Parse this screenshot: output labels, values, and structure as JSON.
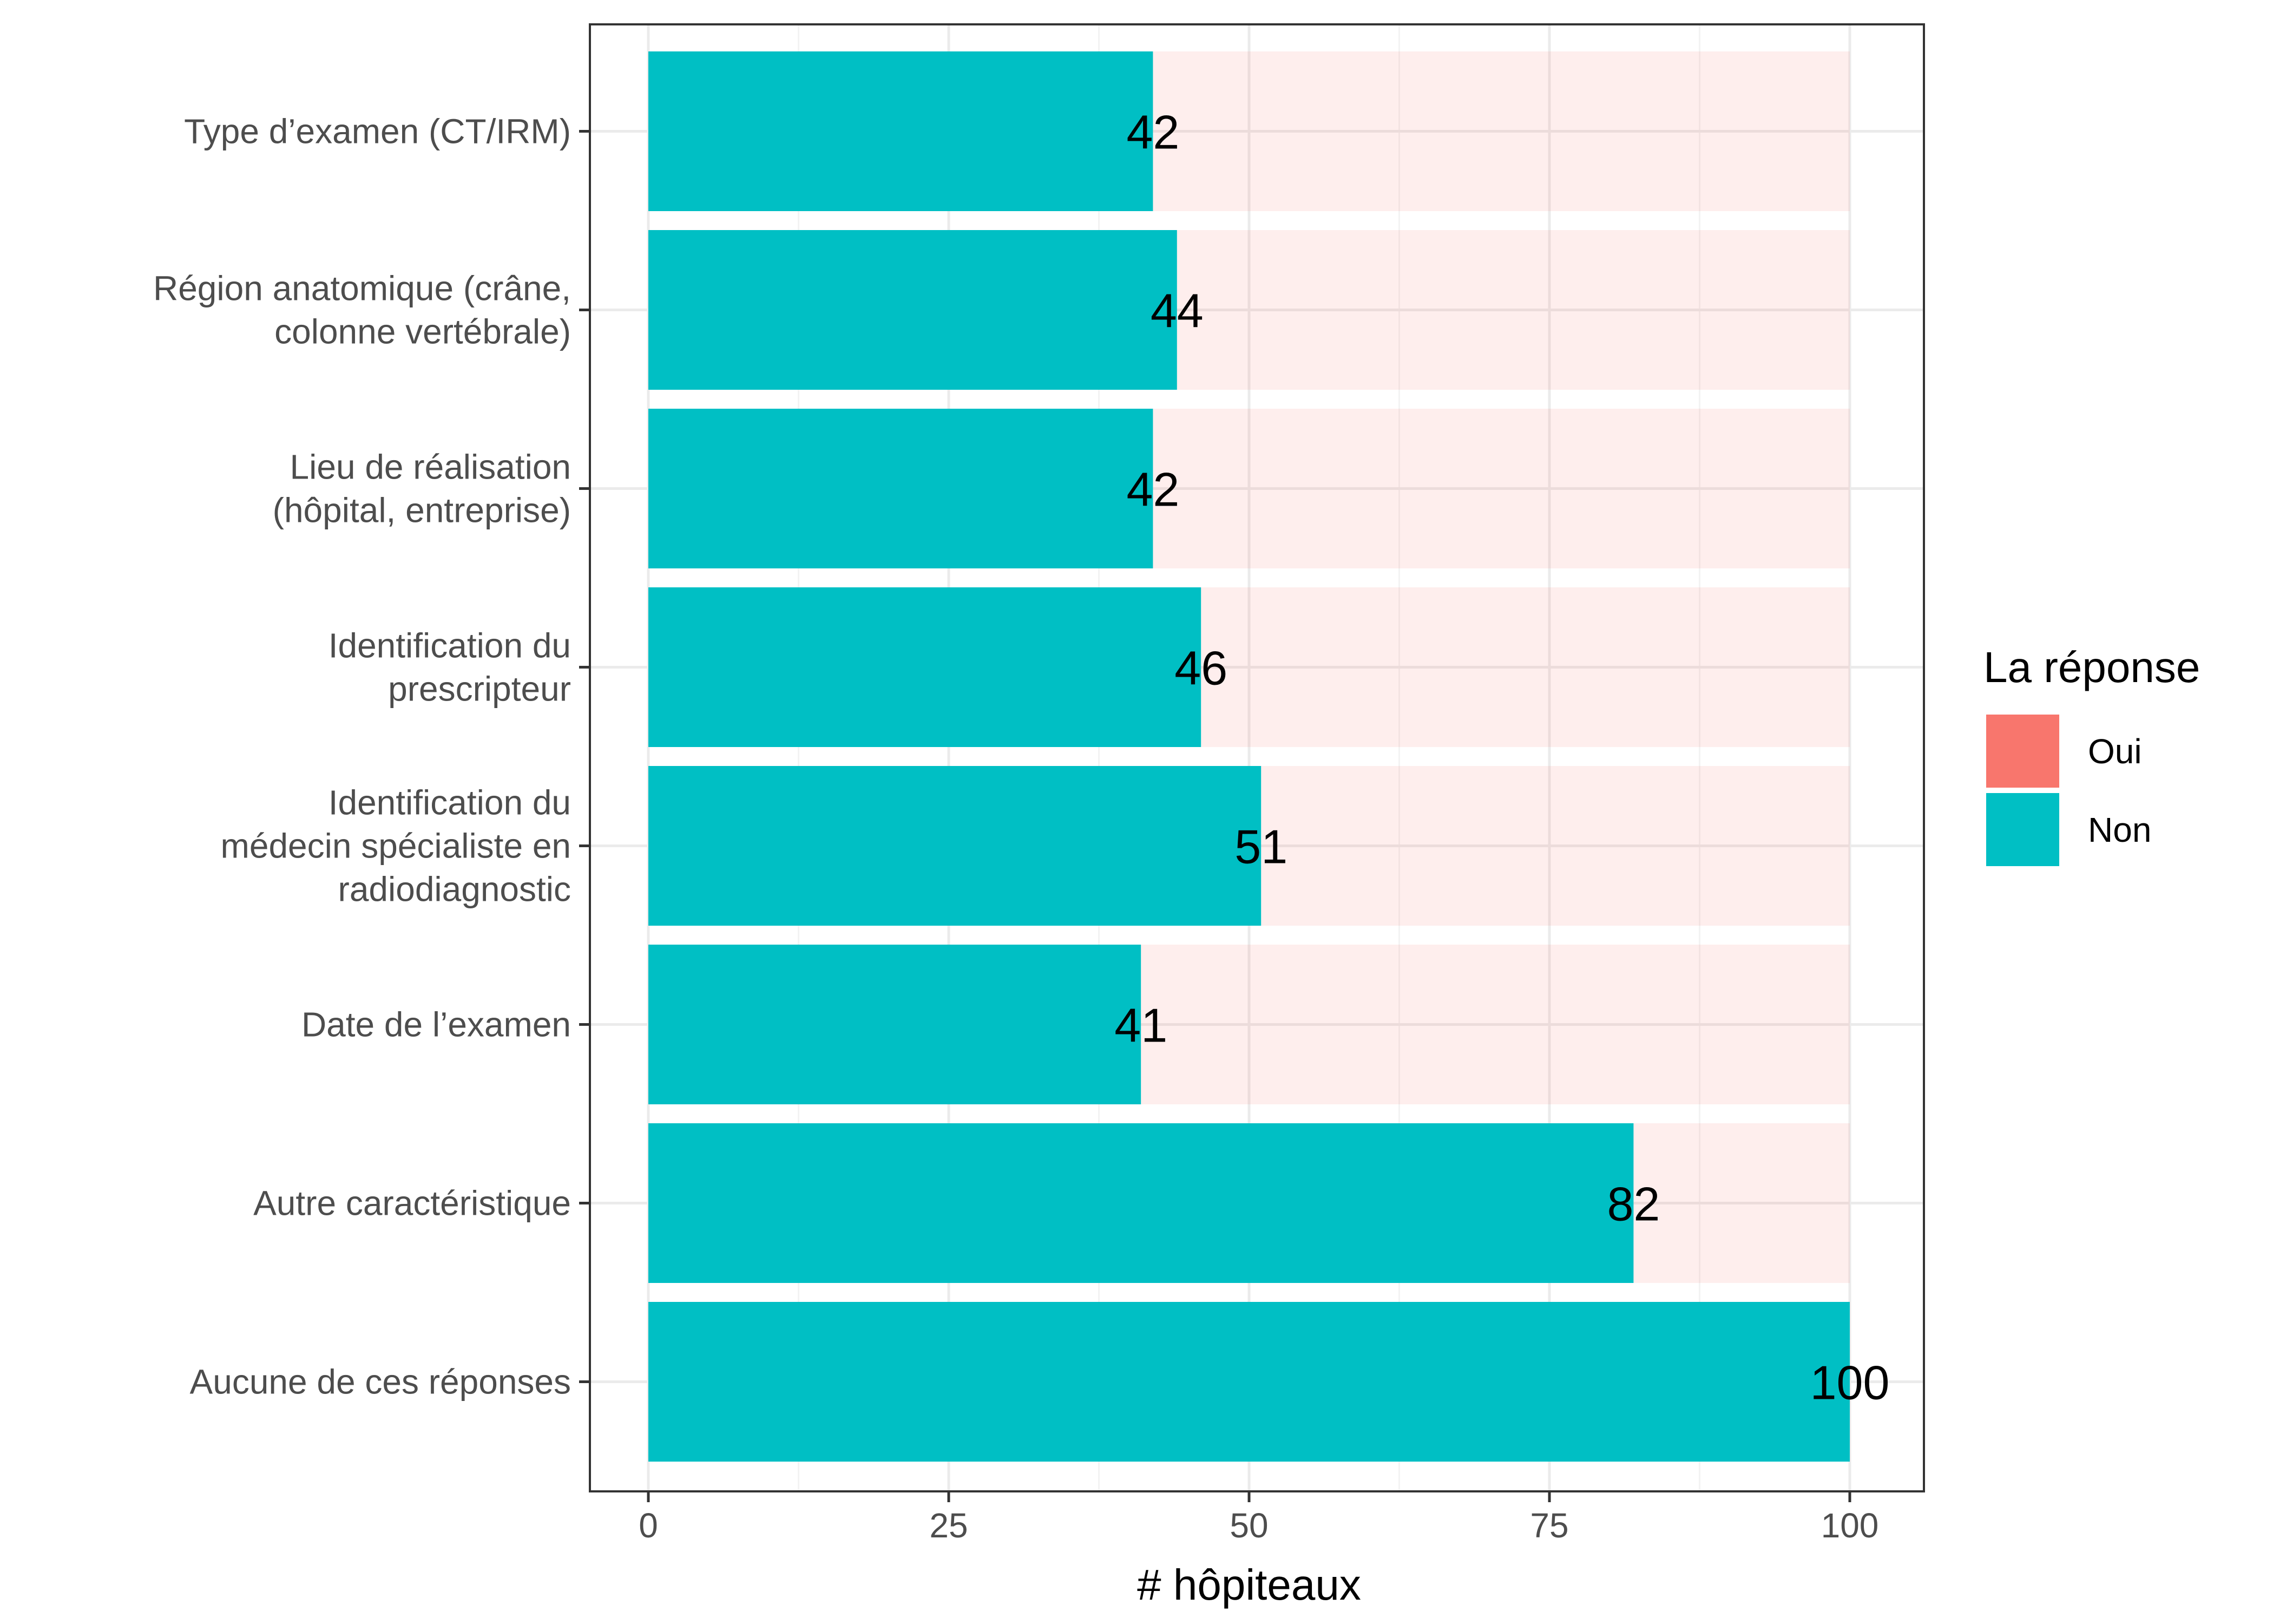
{
  "chart_data": {
    "type": "bar",
    "orientation": "horizontal",
    "stacked": true,
    "categories": [
      "Type d’examen (CT/IRM)",
      "Région anatomique (crâne,\ncolonne vertébrale)",
      "Lieu de réalisation\n(hôpital, entreprise)",
      "Identification du\nprescripteur",
      "Identification du\nmédecin spécialiste en\nradiodiagnostic",
      "Date de l’examen",
      "Autre caractéristique",
      "Aucune de ces réponses"
    ],
    "series": [
      {
        "name": "Oui",
        "color": "#F8766D",
        "values": [
          58,
          56,
          58,
          54,
          49,
          59,
          18,
          0
        ],
        "opacity": 0.12
      },
      {
        "name": "Non",
        "color": "#00BFC4",
        "values": [
          42,
          44,
          42,
          46,
          51,
          41,
          82,
          100
        ]
      }
    ],
    "data_labels": [
      "42",
      "44",
      "42",
      "46",
      "51",
      "41",
      "82",
      "100"
    ],
    "xlabel": "# hôpiteaux",
    "ylabel": "",
    "xlim": [
      0,
      100
    ],
    "x_ticks": [
      0,
      25,
      50,
      75,
      100
    ],
    "x_tick_labels": [
      "0",
      "25",
      "50",
      "75",
      "100"
    ],
    "grid": true,
    "legend": {
      "title": "La réponse",
      "placement": "right",
      "entries": [
        "Oui",
        "Non"
      ]
    }
  }
}
